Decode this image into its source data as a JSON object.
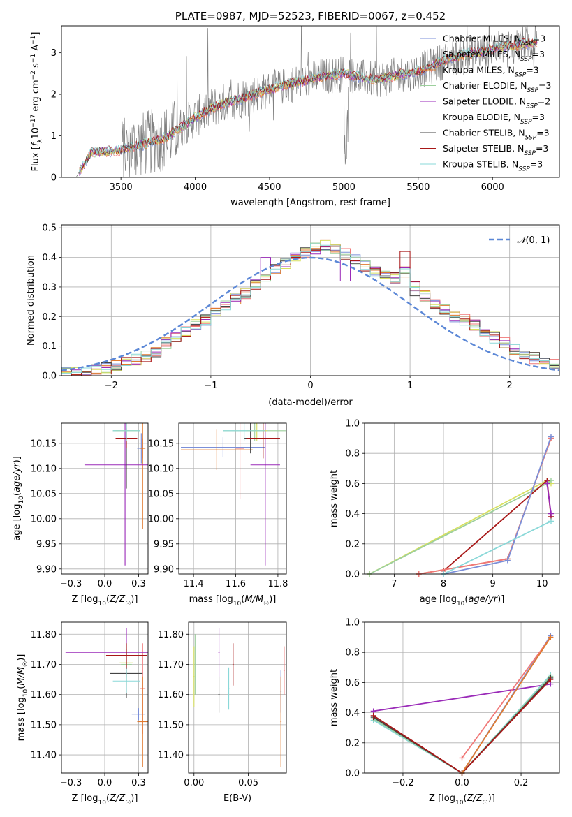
{
  "colors": {
    "chabrier_miles": "#7b8fd8",
    "salpeter_miles": "#f07878",
    "kroupa_miles": "#e07a2e",
    "chabrier_elodie": "#9ccf9c",
    "salpeter_elodie": "#9a2ab8",
    "kroupa_elodie": "#d8e060",
    "chabrier_stelib": "#444444",
    "salpeter_stelib": "#a81818",
    "kroupa_stelib": "#8ad8d8",
    "data": "#808080",
    "normal": "#5b87d6"
  },
  "chart_data": [
    {
      "id": "spectrum",
      "type": "line",
      "title": "PLATE=0987, MJD=52523, FIBERID=0067, z=0.452",
      "xlabel": "wavelength [Angstrom, rest frame]",
      "ylabel": "Flux [f_λ 10^-17 erg cm^-2 s^-1 A^-1]",
      "xlim": [
        3100,
        6450
      ],
      "ylim": [
        0,
        3.65
      ],
      "xticks": [
        3500,
        4000,
        4500,
        5000,
        5500,
        6000
      ],
      "yticks": [
        0,
        1,
        2,
        3
      ],
      "grid": false,
      "legend_position": "upper-right",
      "continuum": {
        "x": [
          3200,
          3300,
          3400,
          3500,
          3600,
          3700,
          3800,
          3900,
          4000,
          4100,
          4200,
          4300,
          4400,
          4500,
          4600,
          4700,
          4800,
          4900,
          5000,
          5100,
          5200,
          5300,
          5400,
          5500,
          5600,
          5700,
          5800,
          5900,
          6000,
          6100,
          6200,
          6300
        ],
        "y": [
          0.0,
          0.6,
          0.62,
          0.65,
          0.75,
          0.85,
          0.95,
          1.2,
          1.45,
          1.65,
          1.8,
          1.9,
          2.0,
          2.12,
          2.2,
          2.3,
          2.4,
          2.45,
          2.5,
          2.42,
          2.35,
          2.4,
          2.5,
          2.55,
          2.7,
          2.85,
          2.95,
          3.0,
          3.1,
          3.15,
          3.2,
          3.25
        ]
      },
      "legend": [
        "Chabrier MILES, N_SSP=3",
        "Salpeter MILES, N_SSP=3",
        "Kroupa MILES, N_SSP=3",
        "Chabrier ELODIE, N_SSP=3",
        "Salpeter ELODIE, N_SSP=2",
        "Kroupa ELODIE, N_SSP=3",
        "Chabrier STELIB, N_SSP=3",
        "Salpeter STELIB, N_SSP=3",
        "Kroupa STELIB, N_SSP=3"
      ]
    },
    {
      "id": "residuals",
      "type": "line",
      "xlabel": "(data-model)/error",
      "ylabel": "Normed distribution",
      "xlim": [
        -2.5,
        2.5
      ],
      "ylim": [
        0,
        0.51
      ],
      "xticks": [
        -2,
        -1,
        0,
        1,
        2
      ],
      "yticks": [
        0.0,
        0.1,
        0.2,
        0.3,
        0.4,
        0.5
      ],
      "grid": true,
      "legend_position": "upper-right",
      "normal_label": "N(0,1)",
      "bins": [
        -2.5,
        -2.4,
        -2.3,
        -2.2,
        -2.1,
        -2.0,
        -1.9,
        -1.8,
        -1.7,
        -1.6,
        -1.5,
        -1.4,
        -1.3,
        -1.2,
        -1.1,
        -1.0,
        -0.9,
        -0.8,
        -0.7,
        -0.6,
        -0.5,
        -0.4,
        -0.3,
        -0.2,
        -0.1,
        0.0,
        0.1,
        0.2,
        0.3,
        0.4,
        0.5,
        0.6,
        0.7,
        0.8,
        0.9,
        1.0,
        1.1,
        1.2,
        1.3,
        1.4,
        1.5,
        1.6,
        1.7,
        1.8,
        1.9,
        2.0,
        2.1,
        2.2,
        2.3,
        2.4,
        2.5
      ],
      "base_histogram": [
        0.01,
        0.01,
        0.015,
        0.02,
        0.025,
        0.035,
        0.045,
        0.055,
        0.065,
        0.08,
        0.11,
        0.13,
        0.15,
        0.17,
        0.19,
        0.21,
        0.24,
        0.26,
        0.28,
        0.31,
        0.33,
        0.36,
        0.38,
        0.4,
        0.42,
        0.43,
        0.44,
        0.43,
        0.41,
        0.39,
        0.37,
        0.35,
        0.34,
        0.33,
        0.35,
        0.3,
        0.27,
        0.24,
        0.22,
        0.2,
        0.19,
        0.17,
        0.15,
        0.13,
        0.11,
        0.09,
        0.07,
        0.06,
        0.05,
        0.04
      ],
      "variants": [
        {
          "model": "salpeter_elodie",
          "bins": [
            20,
            28
          ],
          "values": [
            0.4,
            0.32
          ]
        },
        {
          "model": "chabrier_stelib",
          "bins": [
            35
          ],
          "values": [
            0.27
          ]
        },
        {
          "model": "salpeter_stelib",
          "bins": [
            34
          ],
          "values": [
            0.42
          ]
        }
      ]
    },
    {
      "id": "age_vs_Z",
      "type": "scatter",
      "xlabel": "Z [log10(Z/Z☉)]",
      "ylabel": "age [log10(age/yr)]",
      "xlim": [
        -0.32,
        0.32
      ],
      "ylim": [
        9.89,
        10.19
      ],
      "xticks": [
        -0.25,
        0.0,
        0.25
      ],
      "yticks": [
        9.9,
        9.95,
        10.0,
        10.05,
        10.1,
        10.15
      ],
      "grid": true,
      "points": [
        {
          "model": "chabrier_miles",
          "x": 0.27,
          "y": 10.14,
          "xerr": 0.03,
          "yerr": 0.03
        },
        {
          "model": "salpeter_miles",
          "x": 0.28,
          "y": 10.14,
          "xerr": 0.01,
          "yerr": 0.02
        },
        {
          "model": "kroupa_miles",
          "x": 0.28,
          "y": 10.14,
          "xerr": 0.02,
          "yerr": 0.16
        },
        {
          "model": "chabrier_elodie",
          "x": 0.16,
          "y": 10.175,
          "xerr": 0.1,
          "yerr": 0.02
        },
        {
          "model": "salpeter_elodie",
          "x": 0.15,
          "y": 10.107,
          "xerr": 0.3,
          "yerr": 0.2
        },
        {
          "model": "kroupa_elodie",
          "x": 0.16,
          "y": 10.175,
          "xerr": 0.08,
          "yerr": 0.02
        },
        {
          "model": "chabrier_stelib",
          "x": 0.16,
          "y": 10.16,
          "xerr": 0.03,
          "yerr": 0.1
        },
        {
          "model": "salpeter_stelib",
          "x": 0.16,
          "y": 10.16,
          "xerr": 0.08,
          "yerr": 0.02
        },
        {
          "model": "kroupa_stelib",
          "x": 0.16,
          "y": 10.175,
          "xerr": 0.1,
          "yerr": 0.02
        }
      ]
    },
    {
      "id": "age_vs_mass",
      "type": "scatter",
      "xlabel": "mass [log10(M/M☉)]",
      "ylabel": "",
      "xlim": [
        11.33,
        11.84
      ],
      "ylim": [
        9.89,
        10.19
      ],
      "xticks": [
        11.4,
        11.6,
        11.8
      ],
      "yticks": [
        9.9,
        9.95,
        10.0,
        10.05,
        10.1,
        10.15
      ],
      "grid": true,
      "points": [
        {
          "model": "chabrier_miles",
          "x": 11.54,
          "y": 10.142,
          "xerr": 0.2,
          "yerr": 0.02
        },
        {
          "model": "salpeter_miles",
          "x": 11.62,
          "y": 10.14,
          "xerr": 0.02,
          "yerr": 0.1
        },
        {
          "model": "kroupa_miles",
          "x": 11.51,
          "y": 10.137,
          "xerr": 0.17,
          "yerr": 0.04
        },
        {
          "model": "chabrier_elodie",
          "x": 11.69,
          "y": 10.175,
          "xerr": 0.15,
          "yerr": 0.02
        },
        {
          "model": "salpeter_elodie",
          "x": 11.74,
          "y": 10.107,
          "xerr": 0.07,
          "yerr": 0.2
        },
        {
          "model": "kroupa_elodie",
          "x": 11.7,
          "y": 10.175,
          "xerr": 0.05,
          "yerr": 0.02
        },
        {
          "model": "chabrier_stelib",
          "x": 11.67,
          "y": 10.16,
          "xerr": 0.03,
          "yerr": 0.03
        },
        {
          "model": "salpeter_stelib",
          "x": 11.73,
          "y": 10.16,
          "xerr": 0.08,
          "yerr": 0.04
        },
        {
          "model": "kroupa_stelib",
          "x": 11.64,
          "y": 10.175,
          "xerr": 0.1,
          "yerr": 0.02
        }
      ]
    },
    {
      "id": "weight_vs_age",
      "type": "line",
      "xlabel": "age [log10(age/yr)]",
      "ylabel": "mass weight",
      "xlim": [
        6.4,
        10.35
      ],
      "ylim": [
        0.0,
        1.0
      ],
      "xticks": [
        7,
        8,
        9,
        10
      ],
      "yticks": [
        0.0,
        0.2,
        0.4,
        0.6,
        0.8,
        1.0
      ],
      "grid": true,
      "series": [
        {
          "model": "kroupa_elodie",
          "x": [
            6.5,
            10.1,
            10.18
          ],
          "y": [
            0.0,
            0.62,
            0.6
          ]
        },
        {
          "model": "chabrier_elodie",
          "x": [
            6.5,
            10.1,
            10.18
          ],
          "y": [
            0.0,
            0.6,
            0.62
          ]
        },
        {
          "model": "salpeter_stelib",
          "x": [
            8.0,
            10.1,
            10.18
          ],
          "y": [
            0.02,
            0.62,
            0.38
          ]
        },
        {
          "model": "kroupa_miles",
          "x": [
            7.5,
            9.3,
            10.18
          ],
          "y": [
            0.0,
            0.1,
            0.9
          ]
        },
        {
          "model": "salpeter_miles",
          "x": [
            7.5,
            9.3,
            10.18
          ],
          "y": [
            0.0,
            0.1,
            0.9
          ]
        },
        {
          "model": "chabrier_miles",
          "x": [
            8.0,
            9.3,
            10.18
          ],
          "y": [
            0.0,
            0.09,
            0.91
          ]
        },
        {
          "model": "kroupa_stelib",
          "x": [
            8.0,
            10.18
          ],
          "y": [
            0.0,
            0.35
          ]
        },
        {
          "model": "salpeter_elodie",
          "x": [
            10.1,
            10.18
          ],
          "y": [
            0.6,
            0.4
          ]
        }
      ]
    },
    {
      "id": "mass_vs_Z",
      "type": "scatter",
      "xlabel": "Z [log10(Z/Z☉)]",
      "ylabel": "mass [log10(M/M☉)]",
      "xlim": [
        -0.32,
        0.32
      ],
      "ylim": [
        11.34,
        11.84
      ],
      "xticks": [
        -0.25,
        0.0,
        0.25
      ],
      "yticks": [
        11.4,
        11.5,
        11.6,
        11.7,
        11.8
      ],
      "grid": true,
      "points": [
        {
          "model": "chabrier_miles",
          "x": 0.25,
          "y": 11.535,
          "xerr": 0.05,
          "yerr": 0.02
        },
        {
          "model": "salpeter_miles",
          "x": 0.28,
          "y": 11.62,
          "xerr": 0.02,
          "yerr": 0.15
        },
        {
          "model": "kroupa_miles",
          "x": 0.28,
          "y": 11.51,
          "xerr": 0.04,
          "yerr": 0.15
        },
        {
          "model": "chabrier_elodie",
          "x": 0.16,
          "y": 11.7,
          "xerr": 0.04,
          "yerr": 0.07
        },
        {
          "model": "salpeter_elodie",
          "x": 0.16,
          "y": 11.74,
          "xerr": 0.45,
          "yerr": 0.08
        },
        {
          "model": "kroupa_elodie",
          "x": 0.16,
          "y": 11.705,
          "xerr": 0.05,
          "yerr": 0.05
        },
        {
          "model": "chabrier_stelib",
          "x": 0.16,
          "y": 11.67,
          "xerr": 0.12,
          "yerr": 0.08
        },
        {
          "model": "salpeter_stelib",
          "x": 0.16,
          "y": 11.73,
          "xerr": 0.15,
          "yerr": 0.04
        },
        {
          "model": "kroupa_stelib",
          "x": 0.16,
          "y": 11.645,
          "xerr": 0.1,
          "yerr": 0.04
        }
      ]
    },
    {
      "id": "mass_vs_ebv",
      "type": "scatter",
      "xlabel": "E(B-V)",
      "ylabel": "",
      "xlim": [
        -0.005,
        0.085
      ],
      "ylim": [
        11.34,
        11.84
      ],
      "xticks": [
        0.0,
        0.05
      ],
      "yticks": [
        11.4,
        11.5,
        11.6,
        11.7,
        11.8
      ],
      "grid": true,
      "points": [
        {
          "model": "chabrier_miles",
          "x": 0.08,
          "y": 11.61,
          "yerr": 0.07
        },
        {
          "model": "salpeter_miles",
          "x": 0.083,
          "y": 11.68,
          "yerr": 0.08
        },
        {
          "model": "kroupa_miles",
          "x": 0.08,
          "y": 11.51,
          "yerr": 0.15
        },
        {
          "model": "chabrier_elodie",
          "x": 0.001,
          "y": 11.7,
          "yerr": 0.1
        },
        {
          "model": "salpeter_elodie",
          "x": 0.023,
          "y": 11.74,
          "yerr": 0.08
        },
        {
          "model": "kroupa_elodie",
          "x": 0.0,
          "y": 11.66,
          "yerr": 0.1
        },
        {
          "model": "chabrier_stelib",
          "x": 0.023,
          "y": 11.6,
          "yerr": 0.06
        },
        {
          "model": "salpeter_stelib",
          "x": 0.036,
          "y": 11.7,
          "yerr": 0.07
        },
        {
          "model": "kroupa_stelib",
          "x": 0.032,
          "y": 11.62,
          "yerr": 0.07
        }
      ]
    },
    {
      "id": "weight_vs_Z",
      "type": "line",
      "xlabel": "Z [log10(Z/Z☉)]",
      "ylabel": "mass weight",
      "xlim": [
        -0.33,
        0.33
      ],
      "ylim": [
        0.0,
        1.0
      ],
      "xticks": [
        -0.2,
        0.0,
        0.2
      ],
      "yticks": [
        0.0,
        0.2,
        0.4,
        0.6,
        0.8,
        1.0
      ],
      "grid": true,
      "series": [
        {
          "model": "salpeter_elodie",
          "x": [
            -0.3,
            0.3
          ],
          "y": [
            0.41,
            0.59
          ]
        },
        {
          "model": "kroupa_stelib",
          "x": [
            -0.3,
            0.0,
            0.3
          ],
          "y": [
            0.35,
            0.0,
            0.65
          ]
        },
        {
          "model": "chabrier_elodie",
          "x": [
            -0.3,
            0.0,
            0.3
          ],
          "y": [
            0.36,
            0.0,
            0.64
          ]
        },
        {
          "model": "chabrier_stelib",
          "x": [
            -0.3,
            0.0,
            0.3
          ],
          "y": [
            0.37,
            0.0,
            0.63
          ]
        },
        {
          "model": "salpeter_stelib",
          "x": [
            -0.3,
            0.0,
            0.3
          ],
          "y": [
            0.38,
            0.0,
            0.62
          ]
        },
        {
          "model": "chabrier_miles",
          "x": [
            0.0,
            0.3
          ],
          "y": [
            0.0,
            0.91
          ]
        },
        {
          "model": "salpeter_miles",
          "x": [
            0.0,
            0.3
          ],
          "y": [
            0.1,
            0.9
          ]
        },
        {
          "model": "kroupa_miles",
          "x": [
            0.0,
            0.3
          ],
          "y": [
            0.0,
            0.9
          ]
        }
      ]
    }
  ]
}
